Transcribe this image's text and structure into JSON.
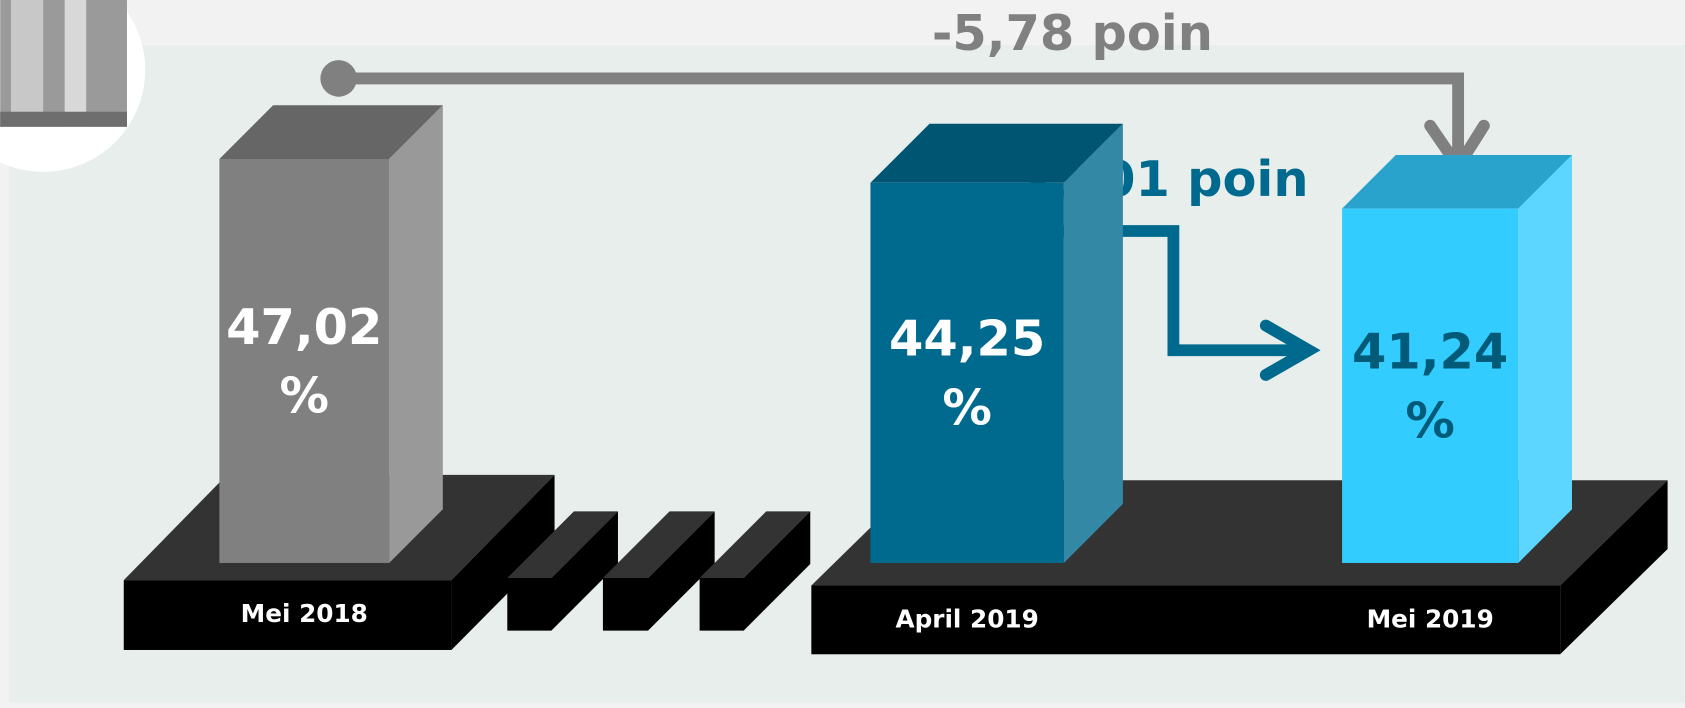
{
  "chart_data": {
    "type": "bar",
    "categories": [
      "Mei 2018",
      "April 2019",
      "Mei 2019"
    ],
    "values": [
      47.02,
      44.25,
      41.24
    ],
    "value_labels": [
      "47,02 %",
      "44,25 %",
      "41,24 %"
    ],
    "colors": [
      "#808080",
      "#006a8e",
      "#33ccff"
    ],
    "label_colors": [
      "#ffffff",
      "#ffffff",
      "#005a78"
    ],
    "annotations": [
      "-5,78 poin",
      "-3,01 poin"
    ],
    "annotation_colors": [
      "#808080",
      "#006a8e"
    ]
  }
}
